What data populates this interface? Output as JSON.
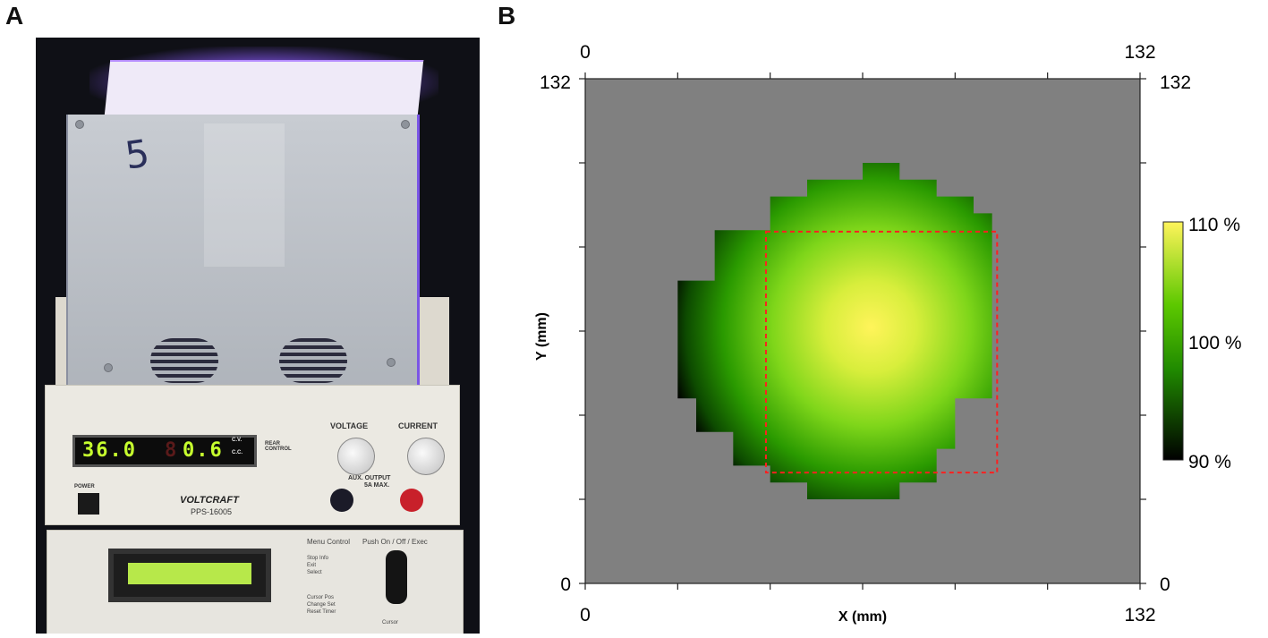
{
  "panels": {
    "a": {
      "letter": "A",
      "box_mark": "5",
      "psu": {
        "voltage_display": "36.0",
        "current_display": "0.6",
        "current_display_prefix": "8",
        "voltage_knob_label": "VOLTAGE",
        "current_knob_label": "CURRENT",
        "cv_label": "C.V.",
        "cc_label": "C.C.",
        "remote_label": "REAR\nCONTROL",
        "aux_label": "AUX. OUTPUT",
        "aux_rating": "5A MAX.",
        "power_label": "POWER",
        "brand": "VOLTCRAFT",
        "model": "PPS-16005"
      },
      "controller": {
        "menu_label": "Menu Control",
        "push_label": "Push On / Off / Exec",
        "rows": [
          "Stop Info",
          "Exit",
          "Select",
          "Cursor Pos",
          "Change Set",
          "Reset Timer"
        ],
        "knob_label": "Cursor"
      }
    },
    "b": {
      "letter": "B"
    }
  },
  "chart_data": {
    "type": "heatmap",
    "xlabel": "X (mm)",
    "ylabel": "Y (mm)",
    "xlim": [
      0,
      132
    ],
    "ylim": [
      0,
      132
    ],
    "x_ticks": [
      "0",
      "132"
    ],
    "y_ticks": [
      "0",
      "132"
    ],
    "background_color": "#808080",
    "colorbar": {
      "labels": [
        "110 %",
        "100 %",
        "90 %"
      ],
      "values": [
        110,
        100,
        90
      ],
      "colors": [
        "#000000",
        "#208a00",
        "#5cc800",
        "#fff45a"
      ]
    },
    "irradiance_peak": {
      "x": 68,
      "y": 67,
      "value": 110
    },
    "irradiance_edge_value": 90,
    "illuminated_region_outline": [
      [
        21,
        62
      ],
      [
        24,
        78
      ],
      [
        32,
        92
      ],
      [
        44,
        102
      ],
      [
        54,
        107
      ],
      [
        64,
        108
      ],
      [
        74,
        106
      ],
      [
        84,
        101
      ],
      [
        91,
        96
      ],
      [
        96,
        88
      ],
      [
        98,
        78
      ],
      [
        98,
        62
      ],
      [
        95,
        48
      ],
      [
        89,
        36
      ],
      [
        82,
        28
      ],
      [
        74,
        23
      ],
      [
        70,
        21
      ],
      [
        62,
        23
      ],
      [
        54,
        27
      ],
      [
        44,
        33
      ],
      [
        36,
        40
      ],
      [
        28,
        48
      ],
      [
        23,
        55
      ]
    ],
    "target_rectangle": {
      "x_range": [
        43,
        98
      ],
      "y_range": [
        29,
        92
      ],
      "color": "#ff2020"
    }
  }
}
